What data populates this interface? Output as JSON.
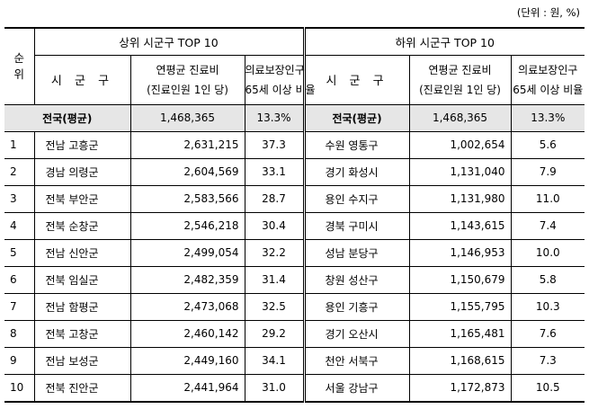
{
  "unit_note": "(단위 : 원, %)",
  "header": {
    "rank_top": "순",
    "rank_bottom": "위",
    "upper_title": "상위 시군구 TOP 10",
    "lower_title": "하위 시군구 TOP 10",
    "region_label": "시 군 구",
    "cost_line1": "연평균 진료비",
    "cost_line2": "(진료인원 1인 당)",
    "rate_line1": "의료보장인구",
    "rate_line2": "65세 이상 비율"
  },
  "national": {
    "label": "전국(평균)",
    "upper_cost": "1,468,365",
    "upper_rate": "13.3%",
    "lower_label": "전국(평균)",
    "lower_cost": "1,468,365",
    "lower_rate": "13.3%"
  },
  "rows": [
    {
      "rank": "1",
      "upper_region": "전남 고흥군",
      "upper_cost": "2,631,215",
      "upper_rate": "37.3",
      "lower_region": "수원 영통구",
      "lower_cost": "1,002,654",
      "lower_rate": "5.6"
    },
    {
      "rank": "2",
      "upper_region": "경남 의령군",
      "upper_cost": "2,604,569",
      "upper_rate": "33.1",
      "lower_region": "경기 화성시",
      "lower_cost": "1,131,040",
      "lower_rate": "7.9"
    },
    {
      "rank": "3",
      "upper_region": "전북 부안군",
      "upper_cost": "2,583,566",
      "upper_rate": "28.7",
      "lower_region": "용인 수지구",
      "lower_cost": "1,131,980",
      "lower_rate": "11.0"
    },
    {
      "rank": "4",
      "upper_region": "전북 순창군",
      "upper_cost": "2,546,218",
      "upper_rate": "30.4",
      "lower_region": "경북 구미시",
      "lower_cost": "1,143,615",
      "lower_rate": "7.4"
    },
    {
      "rank": "5",
      "upper_region": "전남 신안군",
      "upper_cost": "2,499,054",
      "upper_rate": "32.2",
      "lower_region": "성남 분당구",
      "lower_cost": "1,146,953",
      "lower_rate": "10.0"
    },
    {
      "rank": "6",
      "upper_region": "전북 임실군",
      "upper_cost": "2,482,359",
      "upper_rate": "31.4",
      "lower_region": "창원 성산구",
      "lower_cost": "1,150,679",
      "lower_rate": "5.8"
    },
    {
      "rank": "7",
      "upper_region": "전남 함평군",
      "upper_cost": "2,473,068",
      "upper_rate": "32.5",
      "lower_region": "용인 기흥구",
      "lower_cost": "1,155,795",
      "lower_rate": "10.3"
    },
    {
      "rank": "8",
      "upper_region": "전북 고창군",
      "upper_cost": "2,460,142",
      "upper_rate": "29.2",
      "lower_region": "경기 오산시",
      "lower_cost": "1,165,481",
      "lower_rate": "7.6"
    },
    {
      "rank": "9",
      "upper_region": "전남 보성군",
      "upper_cost": "2,449,160",
      "upper_rate": "34.1",
      "lower_region": "천안 서북구",
      "lower_cost": "1,168,615",
      "lower_rate": "7.3"
    },
    {
      "rank": "10",
      "upper_region": "전북 진안군",
      "upper_cost": "2,441,964",
      "upper_rate": "31.0",
      "lower_region": "서울 강남구",
      "lower_cost": "1,172,873",
      "lower_rate": "10.5"
    }
  ]
}
